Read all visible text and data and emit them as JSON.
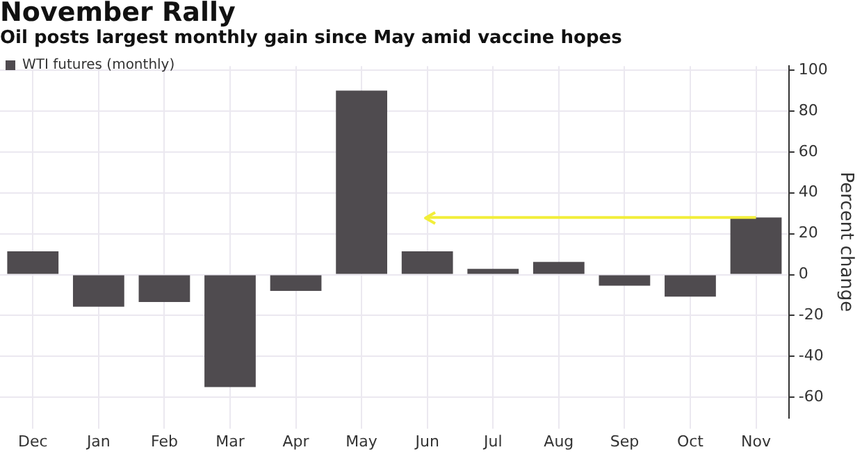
{
  "chart_data": {
    "type": "bar",
    "title": "November Rally",
    "subtitle": "Oil posts largest monthly gain since May amid vaccine hopes",
    "ylabel": "Percent change",
    "categories": [
      "Dec",
      "Jan",
      "Feb",
      "Mar",
      "Apr",
      "May",
      "Jun",
      "Jul",
      "Aug",
      "Sep",
      "Oct",
      "Nov"
    ],
    "series": [
      {
        "name": "WTI futures (monthly)",
        "color": "#4f4b4f",
        "values": [
          11.4,
          -15.7,
          -13.4,
          -55,
          -8,
          90,
          11.4,
          2.8,
          6.2,
          -5.4,
          -10.8,
          27.9
        ]
      },
      {
        "type": "line",
        "color": "#f2ee3a",
        "values": [
          null,
          null,
          null,
          null,
          null,
          null,
          27.9,
          27.9,
          27.9,
          27.9,
          27.9,
          27.9
        ]
      }
    ],
    "marker": "none",
    "ylim": [
      -70,
      102
    ],
    "yticks": [
      -60,
      -40,
      -20,
      0,
      20,
      40,
      60,
      80,
      100
    ],
    "grid": true,
    "legend": "top left"
  }
}
